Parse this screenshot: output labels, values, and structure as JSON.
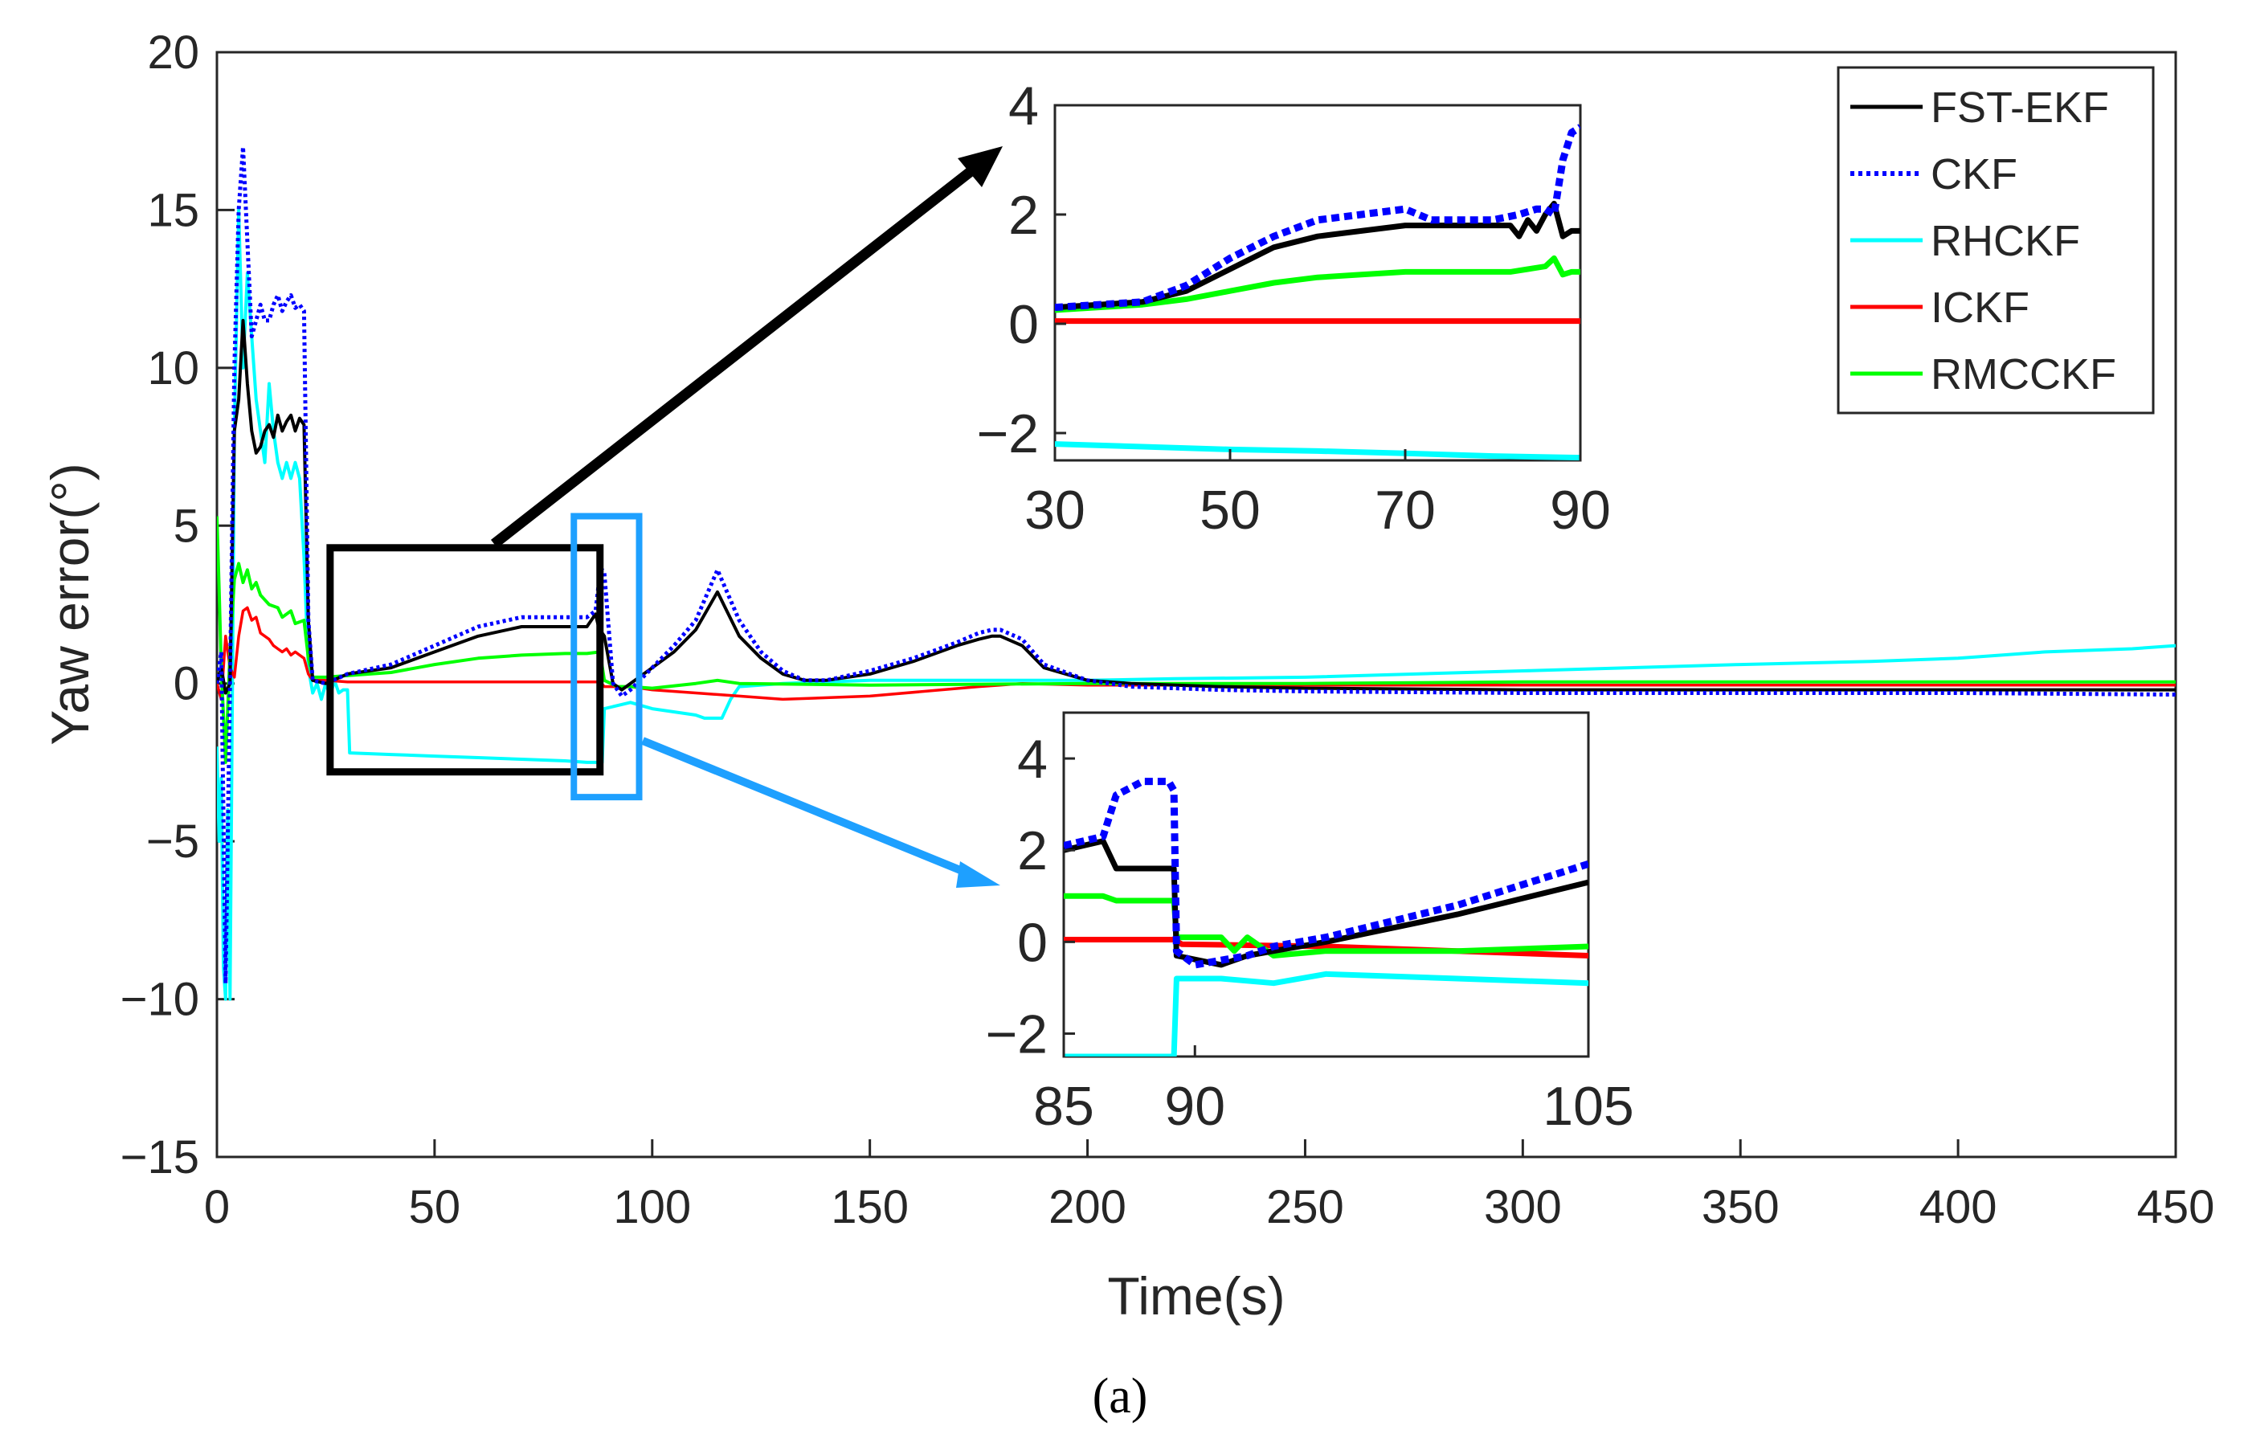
{
  "chart_data": [
    {
      "type": "line",
      "role": "main",
      "caption": "(a)",
      "xlabel": "Time(s)",
      "ylabel": "Yaw error(°)",
      "xlim": [
        0,
        450
      ],
      "ylim": [
        -15,
        20
      ],
      "xticks": [
        0,
        50,
        100,
        150,
        200,
        250,
        300,
        350,
        400,
        450
      ],
      "yticks": [
        20,
        15,
        10,
        5,
        0,
        -5,
        -10,
        -15
      ],
      "ytick_labels": [
        "20",
        "15",
        "10",
        "5",
        "0",
        "−5",
        "−10",
        "−15"
      ],
      "legend": {
        "location": "top-right",
        "entries": [
          {
            "label": "FST-EKF",
            "color": "#000000",
            "style": "solid"
          },
          {
            "label": "CKF",
            "color": "#0000ff",
            "style": "dotted"
          },
          {
            "label": "RHCKF",
            "color": "#00ffff",
            "style": "solid"
          },
          {
            "label": "ICKF",
            "color": "#ff0000",
            "style": "solid"
          },
          {
            "label": "RMCCKF",
            "color": "#00ff00",
            "style": "solid"
          }
        ]
      },
      "highlight_boxes": [
        {
          "name": "zoom-box-black",
          "color": "#000000",
          "x_range": [
            26,
            88
          ],
          "y_range": [
            -2.8,
            4.3
          ],
          "links_to": "inset-upper"
        },
        {
          "name": "zoom-box-blue",
          "color": "#1ea0ff",
          "x_range": [
            82,
            97
          ],
          "y_range": [
            -3.6,
            5.3
          ],
          "links_to": "inset-lower"
        }
      ],
      "series": [
        {
          "name": "RHCKF",
          "color": "#00ffff",
          "width": 4,
          "dash": "",
          "x": [
            0,
            0.5,
            1,
            1.5,
            2,
            2.5,
            3,
            3.5,
            4,
            5,
            6,
            7,
            8,
            9,
            10,
            11,
            12,
            13,
            14,
            15,
            16,
            17,
            18,
            19,
            20,
            21,
            22,
            23,
            24,
            25,
            26,
            27,
            28,
            29,
            30,
            30.5,
            40,
            50,
            60,
            70,
            80,
            85,
            88.5,
            89,
            92,
            95,
            100,
            110,
            112,
            116,
            118,
            120,
            130,
            150,
            200,
            220,
            250,
            300,
            350,
            380,
            400,
            410,
            420,
            440,
            450
          ],
          "y": [
            -2,
            -5,
            -3,
            -9,
            -10,
            -4,
            -10,
            -1,
            8,
            15,
            10,
            13,
            11,
            9,
            8,
            7,
            9.5,
            8,
            7,
            6.5,
            7,
            6.5,
            7,
            6.5,
            4,
            0.5,
            -0.3,
            0,
            -0.5,
            0,
            -0.4,
            0.1,
            -0.3,
            -0.2,
            -0.2,
            -2.2,
            -2.25,
            -2.3,
            -2.35,
            -2.4,
            -2.45,
            -2.5,
            -2.5,
            -0.8,
            -0.7,
            -0.6,
            -0.8,
            -1.0,
            -1.1,
            -1.1,
            -0.5,
            -0.1,
            0.0,
            0.1,
            0.1,
            0.15,
            0.2,
            0.4,
            0.6,
            0.7,
            0.8,
            0.9,
            1.0,
            1.1,
            1.2
          ]
        },
        {
          "name": "ICKF",
          "color": "#ff0000",
          "width": 3.5,
          "dash": "",
          "x": [
            0,
            1,
            2,
            3,
            4,
            5,
            6,
            7,
            8,
            9,
            10,
            11,
            12,
            13,
            14,
            15,
            16,
            17,
            18,
            19,
            20,
            21,
            22,
            25,
            30,
            50,
            88,
            89,
            95,
            100,
            110,
            120,
            130,
            150,
            175,
            180,
            185,
            200,
            250,
            300,
            350,
            400,
            450
          ],
          "y": [
            0,
            -0.5,
            1.5,
            0.5,
            0.2,
            1.5,
            2.3,
            2.4,
            2.0,
            2.1,
            1.6,
            1.5,
            1.4,
            1.2,
            1.1,
            1.0,
            1.1,
            0.9,
            1.0,
            0.9,
            0.8,
            0.3,
            0.1,
            0.1,
            0.05,
            0.05,
            0.05,
            -0.1,
            -0.1,
            -0.2,
            -0.3,
            -0.4,
            -0.5,
            -0.4,
            -0.1,
            -0.05,
            0.0,
            -0.05,
            -0.05,
            -0.05,
            -0.05,
            -0.05,
            -0.05
          ]
        },
        {
          "name": "RMCCKF",
          "color": "#00ff00",
          "width": 4,
          "dash": "",
          "x": [
            0,
            0.5,
            1,
            2,
            3,
            4,
            5,
            6,
            7,
            8,
            9,
            10,
            12,
            14,
            15,
            17,
            18,
            20,
            21,
            22,
            25,
            30,
            40,
            50,
            60,
            70,
            80,
            85,
            88,
            89,
            92,
            95,
            100,
            110,
            115,
            120,
            150,
            200,
            250,
            300,
            350,
            400,
            450
          ],
          "y": [
            5.3,
            3,
            0.5,
            -2.5,
            1.0,
            3.3,
            3.8,
            3.2,
            3.6,
            3.0,
            3.2,
            2.8,
            2.5,
            2.4,
            2.1,
            2.3,
            1.9,
            2.0,
            0.8,
            0.2,
            0.2,
            0.25,
            0.35,
            0.6,
            0.8,
            0.9,
            0.95,
            0.95,
            1.0,
            0.1,
            -0.1,
            -0.1,
            -0.15,
            0.0,
            0.1,
            0.0,
            -0.05,
            0.0,
            0.0,
            0.05,
            0.05,
            0.05,
            0.05
          ]
        },
        {
          "name": "FST-EKF",
          "color": "#000000",
          "width": 4,
          "dash": "",
          "x": [
            0,
            1,
            2,
            3,
            4,
            5,
            6,
            7,
            8,
            9,
            10,
            11,
            12,
            13,
            14,
            15,
            16,
            17,
            18,
            19,
            20,
            21,
            22,
            25,
            30,
            40,
            50,
            60,
            70,
            80,
            85,
            87,
            88,
            88.5,
            89,
            91,
            93,
            95,
            100,
            105,
            110,
            115,
            120,
            125,
            130,
            135,
            140,
            150,
            160,
            170,
            175,
            178,
            180,
            185,
            190,
            200,
            210,
            230,
            250,
            300,
            350,
            400,
            450
          ],
          "y": [
            0,
            0.5,
            -0.3,
            0,
            8,
            9,
            11.5,
            9.5,
            8,
            7.3,
            7.5,
            8,
            8.2,
            7.8,
            8.5,
            8,
            8.3,
            8.5,
            8.0,
            8.4,
            8.2,
            2.0,
            0.1,
            0.0,
            0.3,
            0.5,
            1.0,
            1.5,
            1.8,
            1.8,
            1.8,
            2.2,
            1.6,
            1.6,
            1.5,
            0.0,
            -0.2,
            0.0,
            0.5,
            1.0,
            1.7,
            2.9,
            1.5,
            0.8,
            0.3,
            0.1,
            0.1,
            0.3,
            0.7,
            1.2,
            1.4,
            1.5,
            1.5,
            1.2,
            0.5,
            0.1,
            0.0,
            -0.1,
            -0.15,
            -0.2,
            -0.2,
            -0.2,
            -0.2
          ]
        },
        {
          "name": "CKF",
          "color": "#0000ff",
          "width": 5,
          "dash": "4 4",
          "x": [
            0,
            1,
            2,
            3,
            4,
            5,
            6,
            7,
            8,
            9,
            10,
            11,
            12,
            13,
            14,
            15,
            16,
            17,
            18,
            19,
            20,
            21,
            22,
            25,
            30,
            40,
            50,
            60,
            70,
            80,
            85,
            87,
            88,
            88.5,
            89,
            91,
            93,
            95,
            100,
            105,
            110,
            115,
            120,
            125,
            130,
            135,
            140,
            150,
            160,
            170,
            175,
            178,
            180,
            185,
            190,
            200,
            210,
            230,
            250,
            300,
            350,
            400,
            450
          ],
          "y": [
            0,
            1,
            -9.5,
            0,
            10,
            15,
            17,
            14,
            11,
            11.5,
            12,
            11.5,
            11.5,
            12,
            12.3,
            11.8,
            12.1,
            12.3,
            11.9,
            12.0,
            11.8,
            2.0,
            0.1,
            0.0,
            0.3,
            0.6,
            1.2,
            1.8,
            2.1,
            2.1,
            2.1,
            2.3,
            3.5,
            3.6,
            3.5,
            0.0,
            -0.4,
            -0.2,
            0.5,
            1.2,
            2.0,
            3.6,
            2.0,
            1.0,
            0.4,
            0.1,
            0.1,
            0.4,
            0.8,
            1.3,
            1.6,
            1.7,
            1.7,
            1.4,
            0.6,
            0.1,
            -0.1,
            -0.2,
            -0.25,
            -0.3,
            -0.3,
            -0.3,
            -0.35
          ]
        }
      ]
    },
    {
      "type": "line",
      "role": "inset-upper",
      "xlim": [
        30,
        90
      ],
      "ylim": [
        -2.5,
        4
      ],
      "xticks": [
        30,
        50,
        70,
        90
      ],
      "yticks": [
        4,
        2,
        0,
        -2
      ],
      "ytick_labels": [
        "4",
        "2",
        "0",
        "−2"
      ],
      "series": [
        {
          "name": "RHCKF",
          "color": "#00ffff",
          "width": 7,
          "dash": "",
          "x": [
            30,
            40,
            50,
            60,
            70,
            80,
            90
          ],
          "y": [
            -2.2,
            -2.25,
            -2.3,
            -2.33,
            -2.37,
            -2.42,
            -2.45
          ]
        },
        {
          "name": "ICKF",
          "color": "#ff0000",
          "width": 7,
          "dash": "",
          "x": [
            30,
            40,
            50,
            60,
            70,
            80,
            90
          ],
          "y": [
            0.05,
            0.05,
            0.05,
            0.05,
            0.05,
            0.05,
            0.05
          ]
        },
        {
          "name": "RMCCKF",
          "color": "#00ff00",
          "width": 7,
          "dash": "",
          "x": [
            30,
            35,
            40,
            45,
            50,
            55,
            60,
            65,
            70,
            75,
            80,
            82,
            84,
            86,
            87,
            88,
            89,
            90
          ],
          "y": [
            0.25,
            0.3,
            0.35,
            0.45,
            0.6,
            0.75,
            0.85,
            0.9,
            0.95,
            0.95,
            0.95,
            0.95,
            1.0,
            1.05,
            1.2,
            0.9,
            0.95,
            0.95
          ]
        },
        {
          "name": "FST-EKF",
          "color": "#000000",
          "width": 7,
          "dash": "",
          "x": [
            30,
            35,
            40,
            45,
            50,
            55,
            60,
            65,
            70,
            75,
            80,
            82,
            83,
            84,
            85,
            86,
            87,
            88,
            89,
            90
          ],
          "y": [
            0.3,
            0.35,
            0.4,
            0.6,
            1.0,
            1.4,
            1.6,
            1.7,
            1.8,
            1.8,
            1.8,
            1.8,
            1.6,
            1.9,
            1.7,
            2.0,
            2.2,
            1.6,
            1.7,
            1.7
          ]
        },
        {
          "name": "CKF",
          "color": "#0000ff",
          "width": 9,
          "dash": "10 6",
          "x": [
            30,
            35,
            40,
            45,
            50,
            55,
            60,
            65,
            70,
            73,
            75,
            80,
            83,
            85,
            86,
            87,
            88,
            89,
            90
          ],
          "y": [
            0.3,
            0.35,
            0.4,
            0.7,
            1.2,
            1.6,
            1.9,
            2.0,
            2.1,
            1.9,
            1.9,
            1.9,
            2.0,
            2.1,
            2.1,
            2.0,
            3.0,
            3.5,
            3.6
          ]
        }
      ]
    },
    {
      "type": "line",
      "role": "inset-lower",
      "xlim": [
        85,
        105
      ],
      "ylim": [
        -2.5,
        5
      ],
      "xticks": [
        85,
        90,
        105
      ],
      "yticks": [
        4,
        2,
        0,
        -2
      ],
      "ytick_labels": [
        "4",
        "2",
        "0",
        "−2"
      ],
      "series": [
        {
          "name": "RHCKF",
          "color": "#00ffff",
          "width": 7,
          "dash": "",
          "x": [
            85,
            89.2,
            89.3,
            91,
            93,
            95,
            100,
            105
          ],
          "y": [
            -2.5,
            -2.5,
            -0.8,
            -0.8,
            -0.9,
            -0.7,
            -0.8,
            -0.9
          ]
        },
        {
          "name": "ICKF",
          "color": "#ff0000",
          "width": 7,
          "dash": "",
          "x": [
            85,
            89.2,
            89.5,
            95,
            100,
            105
          ],
          "y": [
            0.05,
            0.05,
            -0.05,
            -0.1,
            -0.2,
            -0.3
          ]
        },
        {
          "name": "RMCCKF",
          "color": "#00ff00",
          "width": 7,
          "dash": "",
          "x": [
            85,
            86.5,
            87,
            89.2,
            89.3,
            91,
            91.5,
            92,
            93,
            95,
            100,
            105
          ],
          "y": [
            1.0,
            1.0,
            0.9,
            0.9,
            0.1,
            0.1,
            -0.2,
            0.1,
            -0.3,
            -0.2,
            -0.2,
            -0.1
          ]
        },
        {
          "name": "FST-EKF",
          "color": "#000000",
          "width": 7,
          "dash": "",
          "x": [
            85,
            86.5,
            87,
            89.2,
            89.3,
            91,
            92,
            93,
            95,
            100,
            105
          ],
          "y": [
            2.0,
            2.2,
            1.6,
            1.6,
            -0.3,
            -0.5,
            -0.3,
            -0.2,
            0.0,
            0.6,
            1.3
          ]
        },
        {
          "name": "CKF",
          "color": "#0000ff",
          "width": 9,
          "dash": "10 6",
          "x": [
            85,
            86.5,
            87,
            88,
            89,
            89.2,
            89.3,
            90,
            91,
            92,
            93,
            95,
            100,
            105
          ],
          "y": [
            2.1,
            2.3,
            3.2,
            3.5,
            3.5,
            3.3,
            -0.2,
            -0.5,
            -0.4,
            -0.3,
            -0.1,
            0.1,
            0.8,
            1.7
          ]
        }
      ]
    }
  ]
}
